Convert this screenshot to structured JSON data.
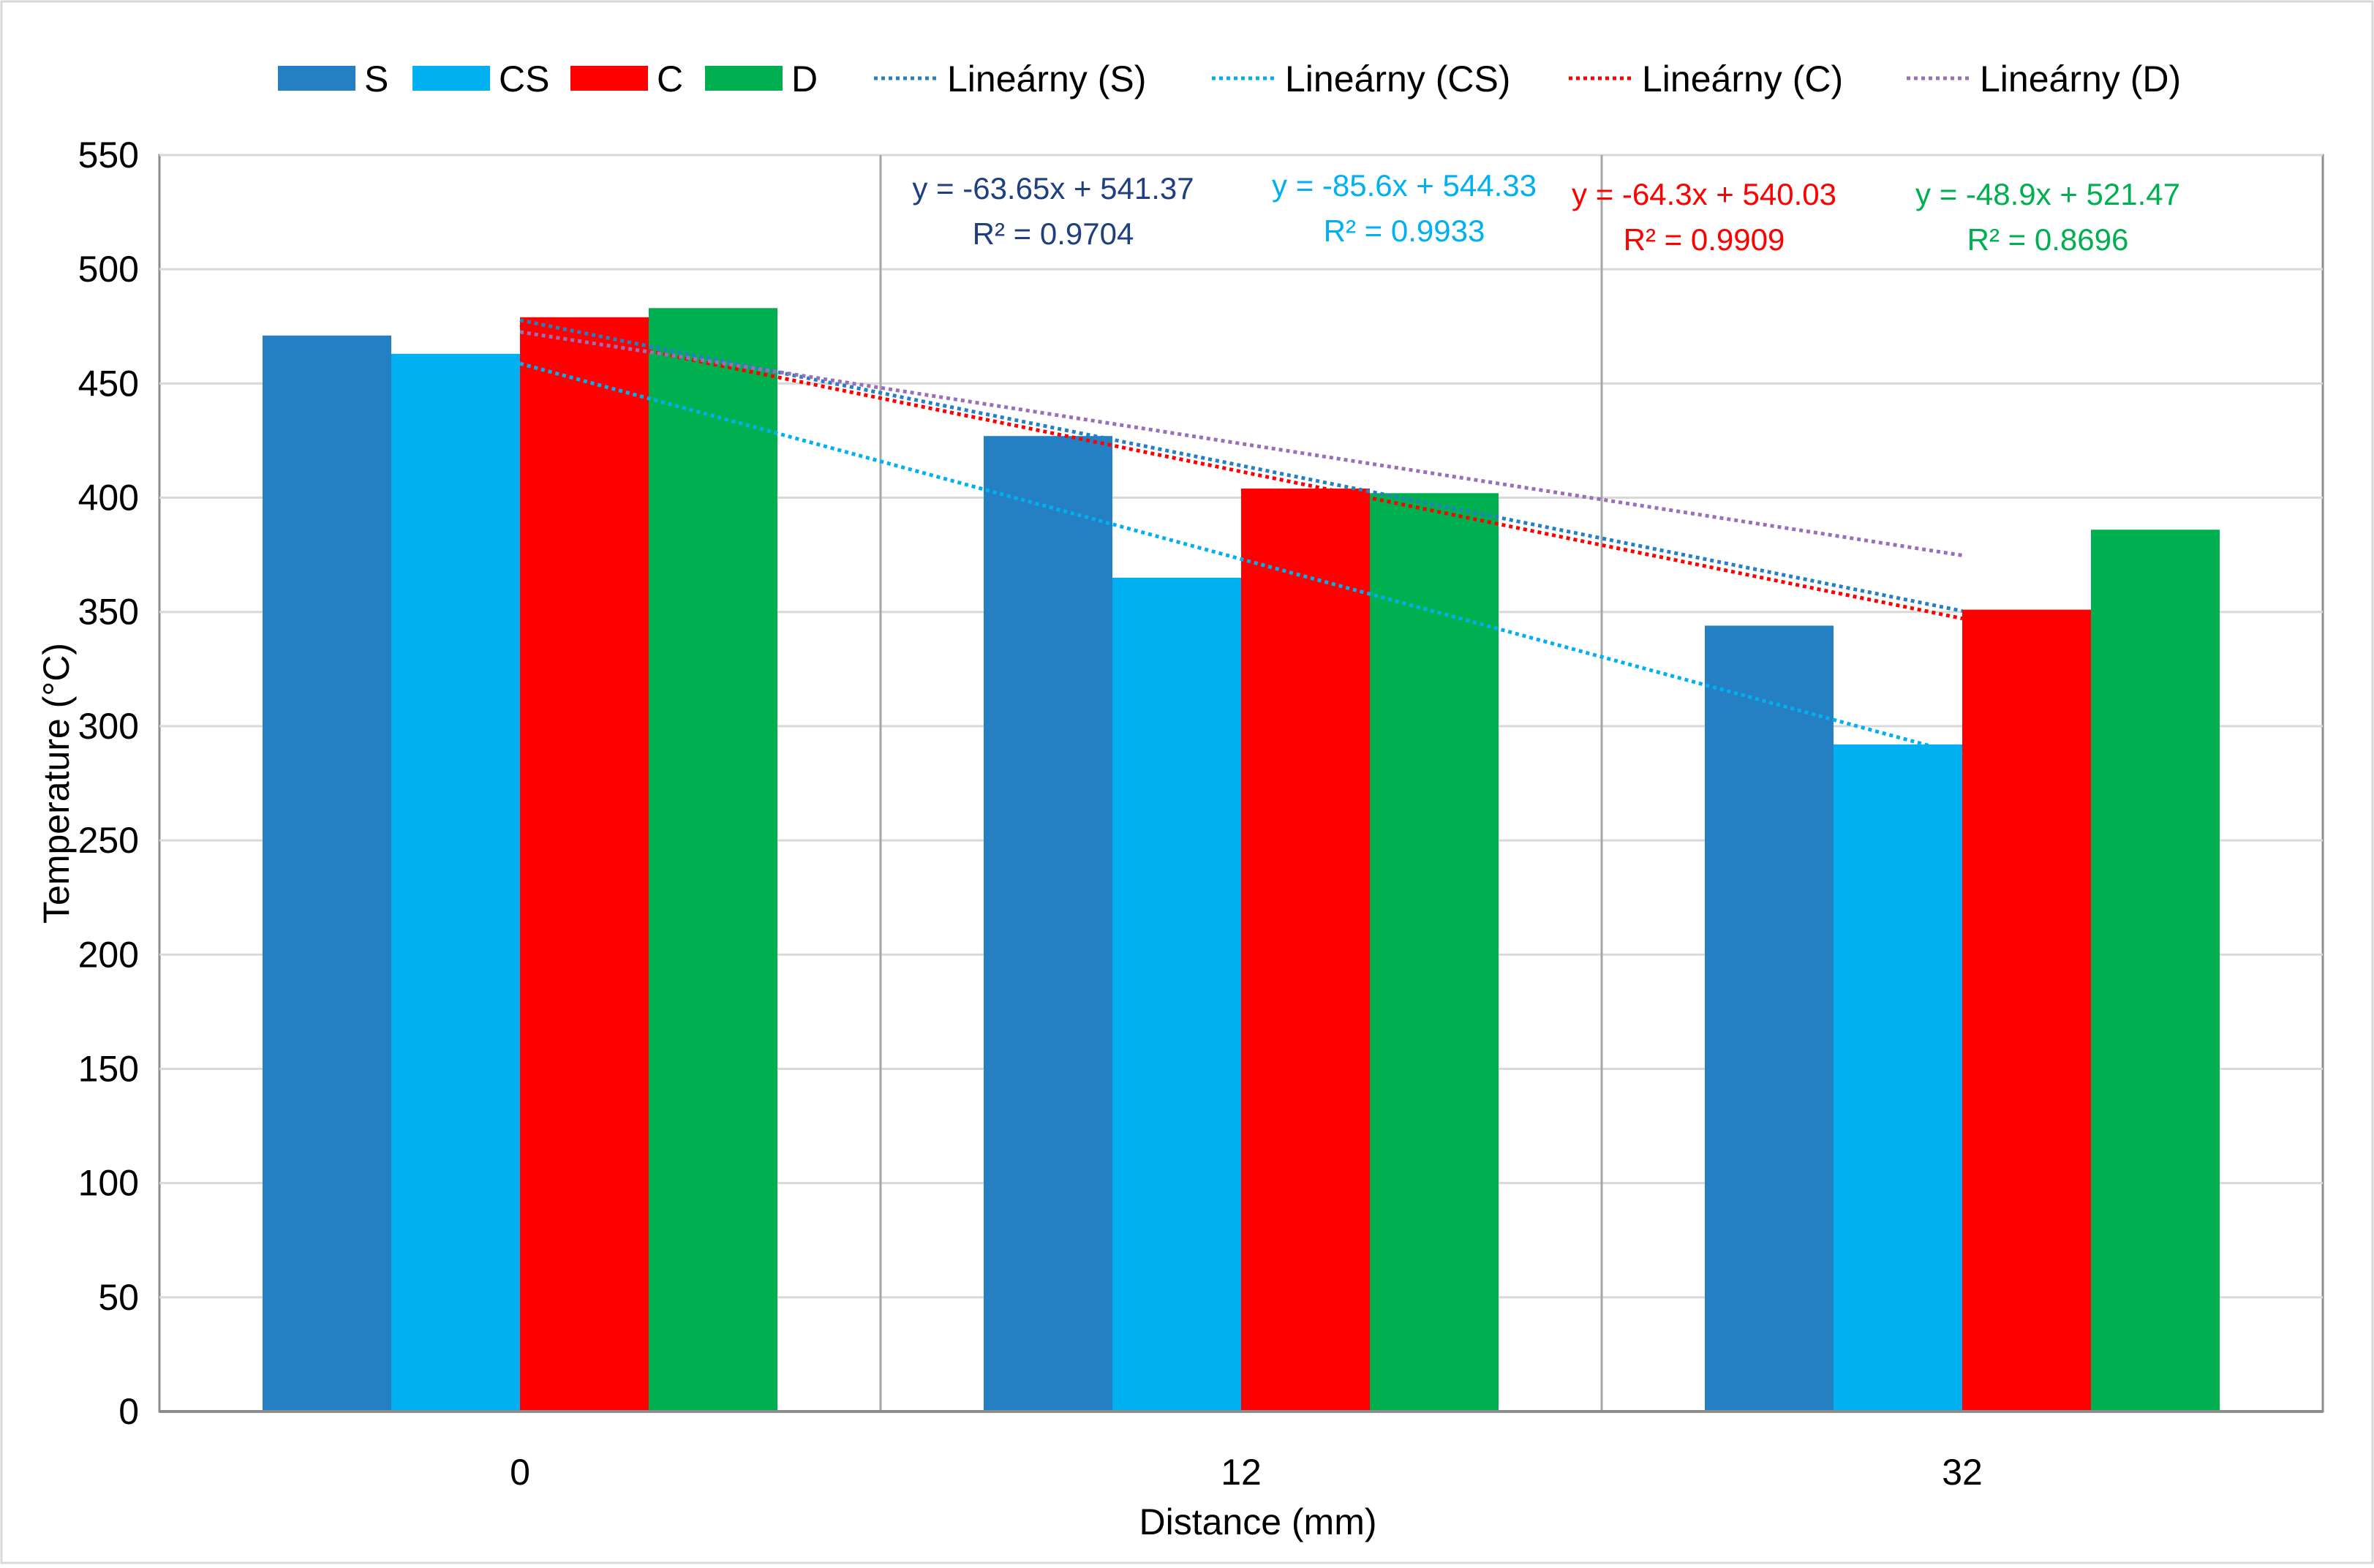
{
  "chart_data": {
    "type": "bar",
    "title": "",
    "xlabel": "Distance (mm)",
    "ylabel": "Temperature (°C)",
    "categories": [
      "0",
      "12",
      "32"
    ],
    "ylim": [
      0,
      550
    ],
    "yticks": [
      0,
      50,
      100,
      150,
      200,
      250,
      300,
      350,
      400,
      450,
      500,
      550
    ],
    "ytick_labels": [
      "0",
      "50",
      "100",
      "150",
      "200",
      "250",
      "300",
      "350",
      "400",
      "450",
      "500",
      "550"
    ],
    "grid": true,
    "legend_position": "top",
    "series": [
      {
        "name": "S",
        "color": "#2580c3",
        "values": [
          471,
          427,
          344
        ]
      },
      {
        "name": "CS",
        "color": "#00b0f0",
        "values": [
          463,
          365,
          292
        ]
      },
      {
        "name": "C",
        "color": "#ff0000",
        "values": [
          479,
          404,
          351
        ]
      },
      {
        "name": "D",
        "color": "#00b050",
        "values": [
          483,
          402,
          386
        ]
      }
    ],
    "trendlines": [
      {
        "name": "Lineárny (S)",
        "series": "S",
        "color": "#2580c3",
        "slope": -63.65,
        "intercept": 541.37,
        "equation": "y = -63.65x + 541.37",
        "r2": "R² = 0.9704",
        "label_color": "#1f3f80"
      },
      {
        "name": "Lineárny (CS)",
        "series": "CS",
        "color": "#00b0f0",
        "slope": -85.6,
        "intercept": 544.33,
        "equation": "y = -85.6x + 544.33",
        "r2": "R² = 0.9933",
        "label_color": "#00b0f0"
      },
      {
        "name": "Lineárny (C)",
        "series": "C",
        "color": "#ff0000",
        "slope": -64.3,
        "intercept": 540.03,
        "equation": "y = -64.3x + 540.03",
        "r2": "R² = 0.9909",
        "label_color": "#ff0000"
      },
      {
        "name": "Lineárny (D)",
        "series": "D",
        "color": "#9b6fb8",
        "slope": -48.9,
        "intercept": 521.47,
        "equation": "y = -48.9x + 521.47",
        "r2": "R² = 0.8696",
        "label_color": "#00b050"
      }
    ]
  }
}
